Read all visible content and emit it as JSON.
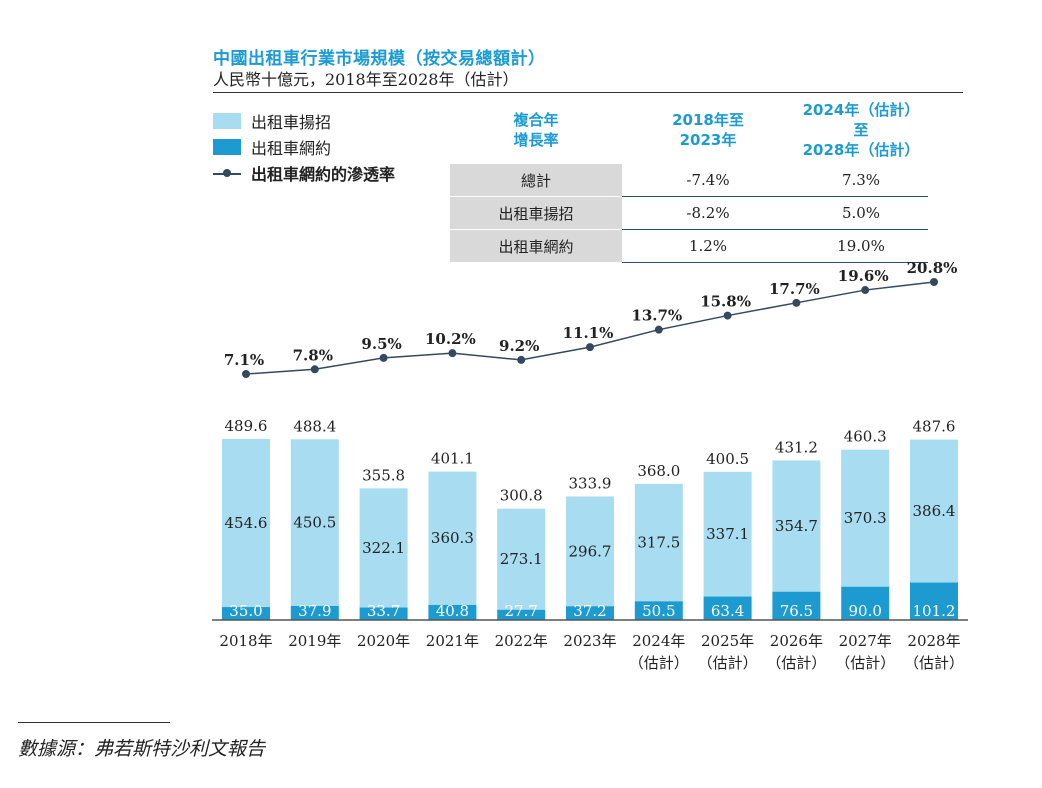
{
  "title": "中國出租車行業市場規模（按交易總額計）",
  "subtitle": "人民幣十億元，2018年至2028年（估計）",
  "legend": {
    "hail": "出租車揚招",
    "ride": "出租車網約",
    "pen": "出租車網約的滲透率"
  },
  "cagr_table": {
    "header_label": [
      "複合年",
      "增長率"
    ],
    "header_col1": [
      "2018年至",
      "2023年"
    ],
    "header_col2": [
      "2024年（估計）至",
      "2028年（估計）"
    ],
    "rows": [
      {
        "label": "總計",
        "v1": "-7.4%",
        "v2": "7.3%"
      },
      {
        "label": "出租車揚招",
        "v1": "-8.2%",
        "v2": "5.0%"
      },
      {
        "label": "出租車網約",
        "v1": "1.2%",
        "v2": "19.0%"
      }
    ]
  },
  "source": "數據源：弗若斯特沙利文報告",
  "colors": {
    "hail": "#a8dcf1",
    "ride": "#1d9bd1",
    "line": "#34495e",
    "title": "#1d9bd1"
  },
  "chart_data": {
    "type": "bar",
    "stacked": true,
    "categories": [
      "2018年",
      "2019年",
      "2020年",
      "2021年",
      "2022年",
      "2023年",
      "2024年\n（估計）",
      "2025年\n（估計）",
      "2026年\n（估計）",
      "2027年\n（估計）",
      "2028年\n（估計）"
    ],
    "series": [
      {
        "name": "出租車網約",
        "values": [
          35.0,
          37.9,
          33.7,
          40.8,
          27.7,
          37.2,
          50.5,
          63.4,
          76.5,
          90.0,
          101.2
        ],
        "labels": [
          "35.0",
          "37.9",
          "33.7",
          "40.8",
          "27.7",
          "37.2",
          "50.5",
          "63.4",
          "76.5",
          "90.0",
          "101.2"
        ]
      },
      {
        "name": "出租車揚招",
        "values": [
          454.6,
          450.5,
          322.1,
          360.3,
          273.1,
          296.7,
          317.5,
          337.1,
          354.7,
          370.3,
          386.4
        ],
        "labels": [
          "454.6",
          "450.5",
          "322.1",
          "360.3",
          "273.1",
          "296.7",
          "317.5",
          "337.1",
          "354.7",
          "370.3",
          "386.4"
        ]
      }
    ],
    "totals": [
      "489.6",
      "488.4",
      "355.8",
      "401.1",
      "300.8",
      "333.9",
      "368.0",
      "400.5",
      "431.2",
      "460.3",
      "487.6"
    ],
    "total_values": [
      489.6,
      488.4,
      355.8,
      401.1,
      300.8,
      333.9,
      368.0,
      400.5,
      431.2,
      460.3,
      487.6
    ],
    "line": {
      "name": "出租車網約的滲透率",
      "values": [
        7.1,
        7.8,
        9.5,
        10.2,
        9.2,
        11.1,
        13.7,
        15.8,
        17.7,
        19.6,
        20.8
      ],
      "labels": [
        "7.1%",
        "7.8%",
        "9.5%",
        "10.2%",
        "9.2%",
        "11.1%",
        "13.7%",
        "15.8%",
        "17.7%",
        "19.6%",
        "20.8%"
      ]
    },
    "ylim_bars": [
      0,
      500
    ],
    "ylim_line": [
      7.1,
      20.8
    ]
  }
}
